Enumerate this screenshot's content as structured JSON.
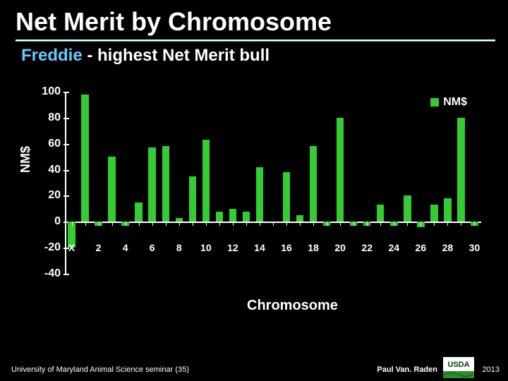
{
  "title": "Net Merit by Chromosome",
  "subtitle": {
    "name": "Freddie",
    "rest": " - highest Net Merit bull"
  },
  "chart": {
    "type": "bar",
    "ylabel": "NM$",
    "xlabel": "Chromosome",
    "ylim": [
      -40,
      100
    ],
    "ytick_step": 20,
    "yticks": [
      -40,
      -20,
      0,
      20,
      40,
      60,
      80,
      100
    ],
    "bar_color": "#33cc33",
    "axis_color": "#ffffff",
    "background_color": "#000000",
    "legend": {
      "label": "NM$",
      "swatch_color": "#33cc33"
    },
    "bar_width": 0.55,
    "categories": [
      "X",
      "1",
      "2",
      "3",
      "4",
      "5",
      "6",
      "7",
      "8",
      "9",
      "10",
      "11",
      "12",
      "13",
      "14",
      "15",
      "16",
      "17",
      "18",
      "19",
      "20",
      "21",
      "22",
      "23",
      "24",
      "25",
      "26",
      "27",
      "28",
      "29",
      "30"
    ],
    "values": [
      -20,
      98,
      -3,
      50,
      -3,
      15,
      57,
      58,
      3,
      35,
      63,
      8,
      10,
      8,
      42,
      0,
      38,
      5,
      58,
      -3,
      80,
      -3,
      -3,
      13,
      -3,
      20,
      -4,
      13,
      18,
      80,
      -3
    ],
    "xtick_labels": [
      "X",
      "2",
      "4",
      "6",
      "8",
      "10",
      "12",
      "14",
      "16",
      "18",
      "20",
      "22",
      "24",
      "26",
      "28",
      "30"
    ],
    "xtick_indices": [
      0,
      2,
      4,
      6,
      8,
      10,
      12,
      14,
      16,
      18,
      20,
      22,
      24,
      26,
      28,
      30
    ]
  },
  "footer": {
    "left": "University of Maryland Animal Science seminar (35)",
    "author": "Paul Van. Raden",
    "year": "2013",
    "logo_text": "USDA"
  },
  "colors": {
    "title_underline_white": "#ffffff",
    "title_underline_teal": "#2aa6a6",
    "subtitle_name": "#66ccff",
    "text": "#ffffff"
  }
}
